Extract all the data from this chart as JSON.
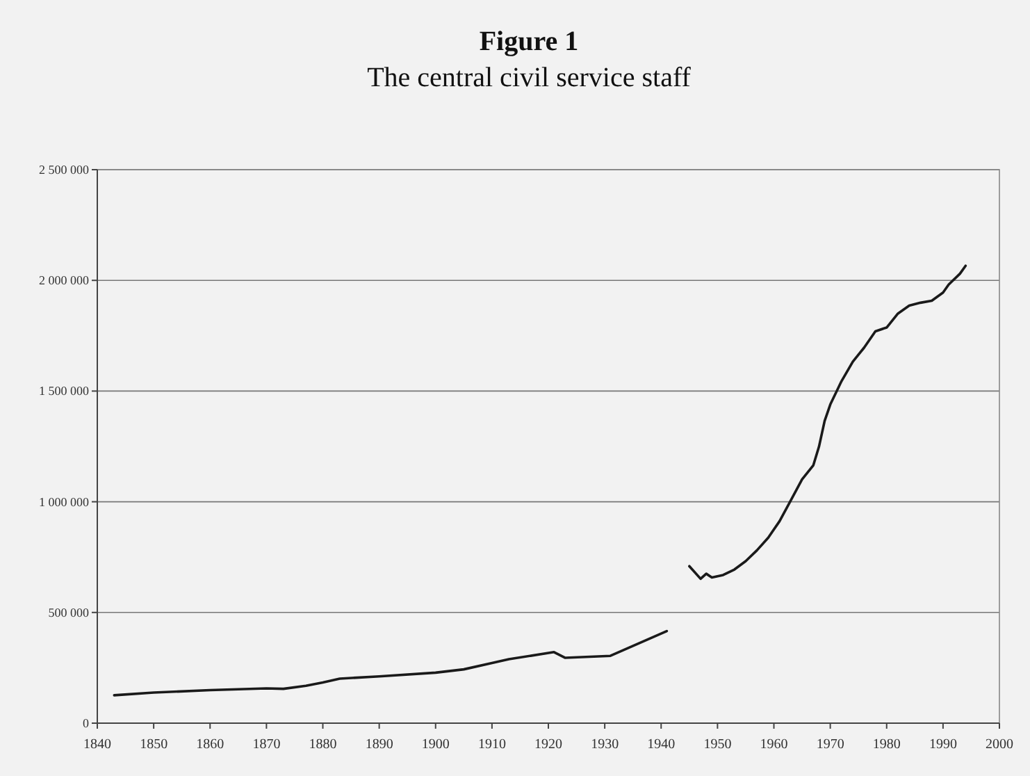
{
  "chart_data": {
    "type": "line",
    "title": "Figure 1",
    "subtitle": "The central civil service staff",
    "x": [
      1843,
      1850,
      1860,
      1870,
      1873,
      1877,
      1880,
      1883,
      1890,
      1900,
      1905,
      1910,
      1913,
      1921,
      1923,
      1931,
      1941,
      1943,
      1945,
      1947,
      1948,
      1949,
      1951,
      1953,
      1955,
      1957,
      1959,
      1961,
      1963,
      1965,
      1967,
      1968,
      1969,
      1970,
      1972,
      1974,
      1976,
      1978,
      1980,
      1982,
      1984,
      1986,
      1988,
      1990,
      1991,
      1993,
      1994
    ],
    "series": [
      {
        "color": "#1a1a1a",
        "values": [
          126000,
          138000,
          149000,
          157000,
          155000,
          169000,
          184000,
          201000,
          211000,
          228000,
          243000,
          272000,
          289000,
          321000,
          295000,
          304000,
          416000,
          null,
          709000,
          652000,
          675000,
          658000,
          669000,
          694000,
          732000,
          781000,
          838000,
          912000,
          1006000,
          1101000,
          1165000,
          1249000,
          1365000,
          1439000,
          1545000,
          1633000,
          1696000,
          1770000,
          1787000,
          1850000,
          1886000,
          1899000,
          1908000,
          1945000,
          1981000,
          2030000,
          2066000
        ]
      }
    ],
    "xlim": [
      1840,
      2000
    ],
    "xticks": [
      1840,
      1850,
      1860,
      1870,
      1880,
      1890,
      1900,
      1910,
      1920,
      1930,
      1940,
      1950,
      1960,
      1970,
      1980,
      1990,
      2000
    ],
    "ylim": [
      0,
      2500000
    ],
    "yticks": [
      0,
      {
        "value": 500000,
        "label": "500 000"
      },
      {
        "value": 1000000,
        "label": "1 000 000"
      },
      {
        "value": 1500000,
        "label": "1 500 000"
      },
      {
        "value": 2000000,
        "label": "2 000 000"
      },
      {
        "value": 2500000,
        "label": "2 500 000"
      }
    ],
    "grid": "y",
    "marker": "none",
    "line_style": "solid"
  }
}
